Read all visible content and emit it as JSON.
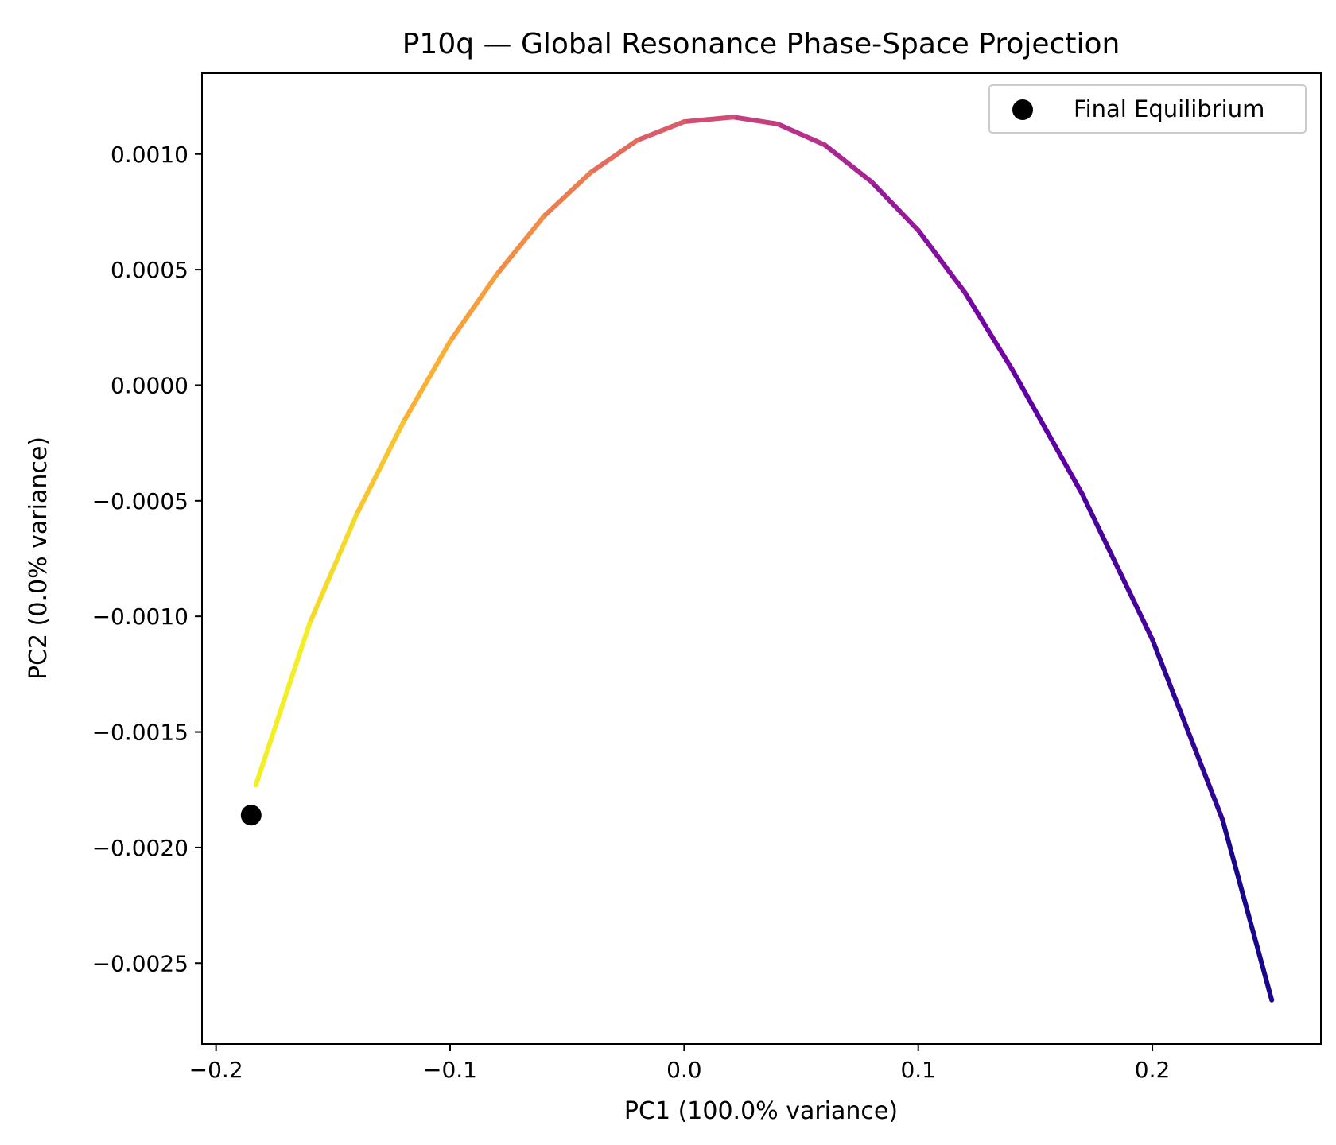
{
  "chart_data": {
    "type": "line",
    "title": "P10q — Global Resonance Phase-Space Projection",
    "xlabel": "PC1 (100.0% variance)",
    "ylabel": "PC2 (0.0% variance)",
    "xlim": [
      -0.206,
      0.272
    ],
    "ylim": [
      -0.00285,
      0.00135
    ],
    "x_ticks": [
      {
        "value": -0.2,
        "label": "−0.2"
      },
      {
        "value": -0.1,
        "label": "−0.1"
      },
      {
        "value": 0.0,
        "label": "0.0"
      },
      {
        "value": 0.1,
        "label": "0.1"
      },
      {
        "value": 0.2,
        "label": "0.2"
      }
    ],
    "y_ticks": [
      {
        "value": 0.001,
        "label": "0.0010"
      },
      {
        "value": 0.0005,
        "label": "0.0005"
      },
      {
        "value": 0.0,
        "label": "0.0000"
      },
      {
        "value": -0.0005,
        "label": "−0.0005"
      },
      {
        "value": -0.001,
        "label": "−0.0010"
      },
      {
        "value": -0.0015,
        "label": "−0.0015"
      },
      {
        "value": -0.002,
        "label": "−0.0020"
      },
      {
        "value": -0.0025,
        "label": "−0.0025"
      }
    ],
    "trajectory": {
      "colormap": "plasma",
      "colors": [
        "#0d0887",
        "#6a00a8",
        "#b12a90",
        "#e16462",
        "#fca636",
        "#f0f921"
      ],
      "x": [
        0.251,
        0.23,
        0.2,
        0.17,
        0.14,
        0.12,
        0.1,
        0.08,
        0.06,
        0.04,
        0.021,
        0.0,
        -0.02,
        -0.04,
        -0.06,
        -0.08,
        -0.1,
        -0.12,
        -0.14,
        -0.16,
        -0.183
      ],
      "y": [
        -0.00266,
        -0.00188,
        -0.0011,
        -0.00047,
        7e-05,
        0.0004,
        0.00067,
        0.00088,
        0.00104,
        0.00113,
        0.00116,
        0.00114,
        0.00106,
        0.00092,
        0.00073,
        0.00048,
        0.00019,
        -0.00016,
        -0.00056,
        -0.00103,
        -0.00173
      ]
    },
    "final_point": {
      "x": -0.185,
      "y": -0.00186,
      "color": "#000000"
    },
    "legend": {
      "position": "top-right",
      "entries": [
        "Final Equilibrium"
      ]
    },
    "grid": false
  }
}
